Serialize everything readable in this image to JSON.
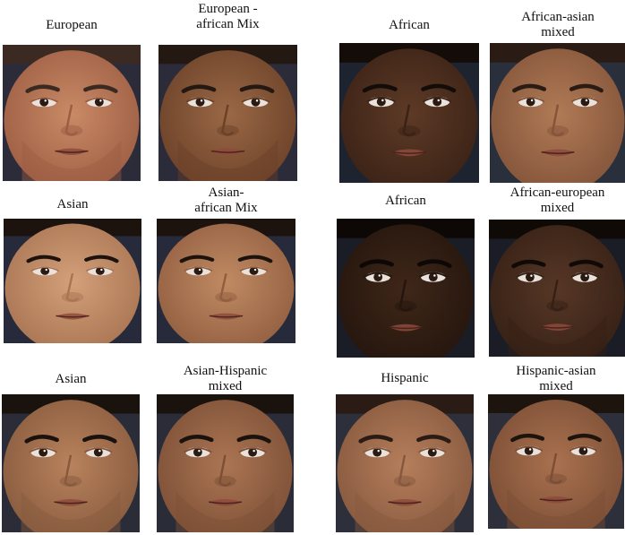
{
  "figure": {
    "panels": [
      {
        "caption": "European",
        "skin": "#c98a66",
        "shade": "#9c5d43",
        "hair": "#3b2a22",
        "bg": "#2b2b3a",
        "beard": true
      },
      {
        "caption": "European -\nafrican Mix",
        "skin": "#9a6846",
        "shade": "#6b4128",
        "hair": "#241812",
        "bg": "#2b2b3a",
        "beard": true
      },
      {
        "caption": "African",
        "skin": "#5e3a26",
        "shade": "#3a2216",
        "hair": "#140c08",
        "bg": "#1e2330",
        "beard": false
      },
      {
        "caption": "African-asian\nmixed",
        "skin": "#b07a55",
        "shade": "#83543a",
        "hair": "#2a1c14",
        "bg": "#2a2f3c",
        "beard": false
      },
      {
        "caption": "Asian",
        "skin": "#d3a07a",
        "shade": "#a87452",
        "hair": "#1c130e",
        "bg": "#262a3a",
        "beard": false
      },
      {
        "caption": "Asian-\nafrican Mix",
        "skin": "#c08a63",
        "shade": "#915e40",
        "hair": "#1c130e",
        "bg": "#262a3a",
        "beard": false
      },
      {
        "caption": "African",
        "skin": "#3f2719",
        "shade": "#24150d",
        "hair": "#0d0806",
        "bg": "#1a1d26",
        "beard": false
      },
      {
        "caption": "African-european\nmixed",
        "skin": "#573726",
        "shade": "#352015",
        "hair": "#100a07",
        "bg": "#1a1d26",
        "beard": true
      },
      {
        "caption": "Asian",
        "skin": "#b8825c",
        "shade": "#875a3e",
        "hair": "#1a120d",
        "bg": "#2a2d38",
        "beard": true
      },
      {
        "caption": "Asian-Hispanic\nmixed",
        "skin": "#ab7553",
        "shade": "#7c4f36",
        "hair": "#1a120d",
        "bg": "#2a2d38",
        "beard": true
      },
      {
        "caption": "Hispanic",
        "skin": "#b57e5b",
        "shade": "#86583e",
        "hair": "#2a1c14",
        "bg": "#2d2f3a",
        "beard": true
      },
      {
        "caption": "Hispanic-asian\nmixed",
        "skin": "#a9714f",
        "shade": "#7b4e35",
        "hair": "#1e140e",
        "bg": "#2d2f3a",
        "beard": true
      }
    ]
  }
}
